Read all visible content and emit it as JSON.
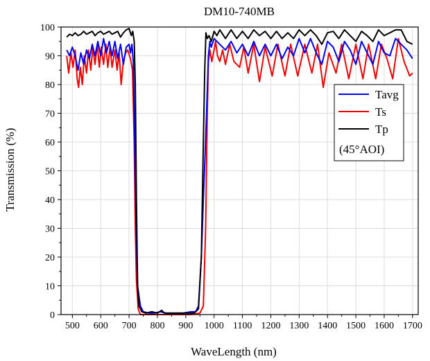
{
  "chart_data": {
    "type": "line",
    "title": "DM10-740MB",
    "xlabel": "WaveLength (nm)",
    "ylabel": "Transmission (%)",
    "xlim": [
      460,
      1720
    ],
    "ylim": [
      0,
      100
    ],
    "xticks": [
      500,
      600,
      700,
      800,
      900,
      1000,
      1100,
      1200,
      1300,
      1400,
      1500,
      1600,
      1700
    ],
    "yticks": [
      0,
      10,
      20,
      30,
      40,
      50,
      60,
      70,
      80,
      90,
      100
    ],
    "grid": true,
    "legend_position": "top-right",
    "legend_note": "(45°AOI)",
    "series": [
      {
        "name": "Tavg",
        "color": "#0000ee",
        "points": [
          [
            480,
            92
          ],
          [
            490,
            90
          ],
          [
            500,
            93
          ],
          [
            510,
            90
          ],
          [
            520,
            85
          ],
          [
            530,
            91
          ],
          [
            540,
            87
          ],
          [
            550,
            92
          ],
          [
            560,
            89
          ],
          [
            570,
            94
          ],
          [
            580,
            90
          ],
          [
            590,
            95
          ],
          [
            600,
            90
          ],
          [
            610,
            96
          ],
          [
            620,
            91
          ],
          [
            630,
            95
          ],
          [
            640,
            90
          ],
          [
            650,
            95
          ],
          [
            660,
            89
          ],
          [
            670,
            94
          ],
          [
            680,
            87
          ],
          [
            690,
            93
          ],
          [
            700,
            94
          ],
          [
            705,
            91
          ],
          [
            710,
            94
          ],
          [
            715,
            88
          ],
          [
            720,
            60
          ],
          [
            725,
            30
          ],
          [
            730,
            10
          ],
          [
            740,
            3
          ],
          [
            750,
            1
          ],
          [
            770,
            0.5
          ],
          [
            790,
            0.5
          ],
          [
            810,
            1
          ],
          [
            830,
            0.5
          ],
          [
            860,
            0.5
          ],
          [
            890,
            0.5
          ],
          [
            920,
            1
          ],
          [
            935,
            1
          ],
          [
            945,
            3
          ],
          [
            955,
            20
          ],
          [
            962,
            40
          ],
          [
            968,
            55
          ],
          [
            975,
            75
          ],
          [
            980,
            90
          ],
          [
            985,
            95
          ],
          [
            990,
            93
          ],
          [
            1000,
            96
          ],
          [
            1020,
            94
          ],
          [
            1040,
            92
          ],
          [
            1060,
            95
          ],
          [
            1080,
            91
          ],
          [
            1100,
            94
          ],
          [
            1120,
            90
          ],
          [
            1140,
            95
          ],
          [
            1160,
            90
          ],
          [
            1180,
            94
          ],
          [
            1200,
            90
          ],
          [
            1220,
            94
          ],
          [
            1240,
            89
          ],
          [
            1260,
            93
          ],
          [
            1280,
            90
          ],
          [
            1300,
            96
          ],
          [
            1320,
            91
          ],
          [
            1340,
            96
          ],
          [
            1360,
            91
          ],
          [
            1380,
            87
          ],
          [
            1400,
            95
          ],
          [
            1420,
            93
          ],
          [
            1440,
            88
          ],
          [
            1460,
            95
          ],
          [
            1480,
            92
          ],
          [
            1500,
            87
          ],
          [
            1520,
            95
          ],
          [
            1540,
            91
          ],
          [
            1560,
            87
          ],
          [
            1580,
            95
          ],
          [
            1600,
            91
          ],
          [
            1620,
            90
          ],
          [
            1640,
            96
          ],
          [
            1660,
            94
          ],
          [
            1680,
            92
          ],
          [
            1700,
            89
          ]
        ]
      },
      {
        "name": "Ts",
        "color": "#ee0000",
        "points": [
          [
            480,
            90
          ],
          [
            487,
            84
          ],
          [
            495,
            91
          ],
          [
            502,
            86
          ],
          [
            510,
            92
          ],
          [
            517,
            82
          ],
          [
            522,
            79
          ],
          [
            528,
            86
          ],
          [
            535,
            80
          ],
          [
            542,
            90
          ],
          [
            550,
            84
          ],
          [
            557,
            92
          ],
          [
            565,
            85
          ],
          [
            572,
            93
          ],
          [
            580,
            87
          ],
          [
            588,
            94
          ],
          [
            595,
            86
          ],
          [
            602,
            93
          ],
          [
            610,
            87
          ],
          [
            618,
            94
          ],
          [
            625,
            86
          ],
          [
            633,
            93
          ],
          [
            640,
            86
          ],
          [
            650,
            92
          ],
          [
            658,
            85
          ],
          [
            665,
            91
          ],
          [
            672,
            80
          ],
          [
            680,
            88
          ],
          [
            688,
            91
          ],
          [
            695,
            92
          ],
          [
            705,
            89
          ],
          [
            712,
            85
          ],
          [
            718,
            60
          ],
          [
            722,
            30
          ],
          [
            726,
            12
          ],
          [
            732,
            2
          ],
          [
            740,
            0
          ],
          [
            800,
            0
          ],
          [
            860,
            0
          ],
          [
            920,
            0
          ],
          [
            950,
            0.5
          ],
          [
            962,
            3
          ],
          [
            970,
            30
          ],
          [
            976,
            70
          ],
          [
            980,
            88
          ],
          [
            985,
            92
          ],
          [
            992,
            88
          ],
          [
            1000,
            92
          ],
          [
            1005,
            95
          ],
          [
            1012,
            90
          ],
          [
            1020,
            88
          ],
          [
            1030,
            92
          ],
          [
            1040,
            87
          ],
          [
            1055,
            94
          ],
          [
            1070,
            88
          ],
          [
            1090,
            86
          ],
          [
            1105,
            93
          ],
          [
            1120,
            84
          ],
          [
            1140,
            94
          ],
          [
            1160,
            81
          ],
          [
            1180,
            93
          ],
          [
            1205,
            83
          ],
          [
            1225,
            94
          ],
          [
            1250,
            83
          ],
          [
            1270,
            94
          ],
          [
            1295,
            83
          ],
          [
            1320,
            94
          ],
          [
            1345,
            84
          ],
          [
            1365,
            94
          ],
          [
            1385,
            79
          ],
          [
            1405,
            91
          ],
          [
            1430,
            84
          ],
          [
            1450,
            94
          ],
          [
            1475,
            82
          ],
          [
            1500,
            94
          ],
          [
            1525,
            82
          ],
          [
            1545,
            94
          ],
          [
            1570,
            82
          ],
          [
            1590,
            94
          ],
          [
            1610,
            89
          ],
          [
            1630,
            82
          ],
          [
            1650,
            96
          ],
          [
            1670,
            88
          ],
          [
            1690,
            83
          ],
          [
            1700,
            84
          ]
        ]
      },
      {
        "name": "Tp",
        "color": "#000000",
        "points": [
          [
            480,
            96.5
          ],
          [
            490,
            97.5
          ],
          [
            500,
            97
          ],
          [
            510,
            98
          ],
          [
            520,
            97
          ],
          [
            530,
            97.5
          ],
          [
            540,
            98.5
          ],
          [
            550,
            97.5
          ],
          [
            560,
            98
          ],
          [
            570,
            98.5
          ],
          [
            580,
            97
          ],
          [
            590,
            98
          ],
          [
            600,
            98.5
          ],
          [
            610,
            97.5
          ],
          [
            620,
            98
          ],
          [
            630,
            98.5
          ],
          [
            640,
            97.5
          ],
          [
            650,
            98
          ],
          [
            660,
            98.5
          ],
          [
            670,
            96.5
          ],
          [
            680,
            98
          ],
          [
            690,
            99
          ],
          [
            700,
            99.5
          ],
          [
            708,
            97
          ],
          [
            713,
            98.5
          ],
          [
            718,
            95
          ],
          [
            722,
            80
          ],
          [
            726,
            40
          ],
          [
            730,
            10
          ],
          [
            735,
            3
          ],
          [
            745,
            1
          ],
          [
            760,
            0.5
          ],
          [
            780,
            1
          ],
          [
            800,
            0.5
          ],
          [
            815,
            1.5
          ],
          [
            825,
            0.5
          ],
          [
            845,
            0.5
          ],
          [
            865,
            0.5
          ],
          [
            900,
            0.5
          ],
          [
            930,
            0.5
          ],
          [
            945,
            2
          ],
          [
            955,
            20
          ],
          [
            962,
            60
          ],
          [
            967,
            85
          ],
          [
            971,
            98
          ],
          [
            976,
            96
          ],
          [
            982,
            97
          ],
          [
            990,
            95
          ],
          [
            1000,
            98.5
          ],
          [
            1010,
            97
          ],
          [
            1020,
            99
          ],
          [
            1040,
            96
          ],
          [
            1060,
            99
          ],
          [
            1080,
            96
          ],
          [
            1100,
            98.5
          ],
          [
            1120,
            96
          ],
          [
            1140,
            99
          ],
          [
            1160,
            97
          ],
          [
            1180,
            98.5
          ],
          [
            1200,
            96
          ],
          [
            1220,
            98.5
          ],
          [
            1240,
            96
          ],
          [
            1260,
            98
          ],
          [
            1280,
            96
          ],
          [
            1300,
            99
          ],
          [
            1320,
            97
          ],
          [
            1340,
            99
          ],
          [
            1360,
            97
          ],
          [
            1380,
            94
          ],
          [
            1400,
            98
          ],
          [
            1420,
            98.5
          ],
          [
            1440,
            96
          ],
          [
            1460,
            99
          ],
          [
            1480,
            97
          ],
          [
            1500,
            95
          ],
          [
            1520,
            98.5
          ],
          [
            1540,
            97
          ],
          [
            1560,
            95
          ],
          [
            1580,
            99
          ],
          [
            1600,
            97
          ],
          [
            1620,
            98
          ],
          [
            1640,
            99
          ],
          [
            1660,
            99
          ],
          [
            1680,
            95
          ],
          [
            1700,
            94
          ]
        ]
      }
    ]
  }
}
